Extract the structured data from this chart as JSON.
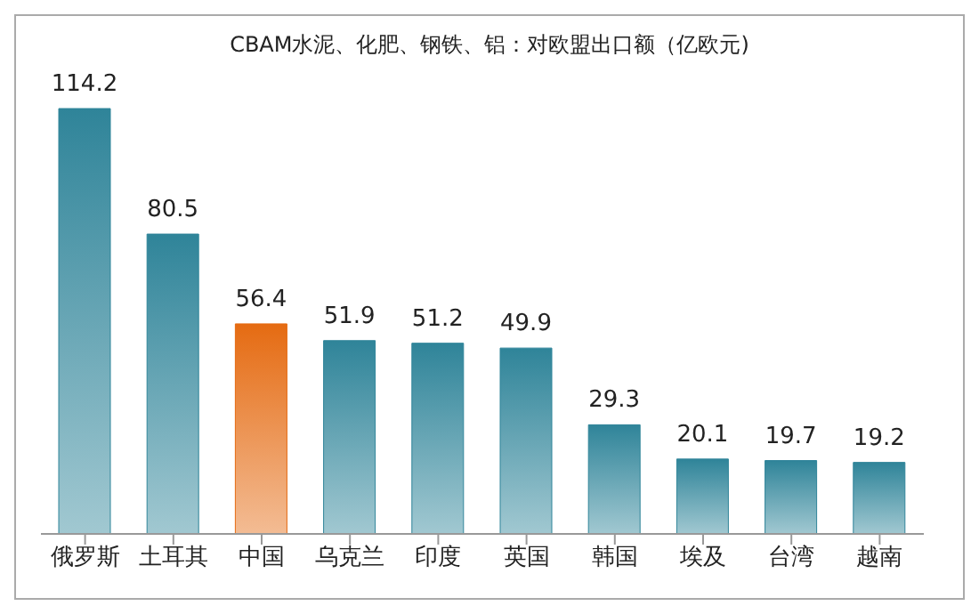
{
  "chart_data": {
    "type": "bar",
    "title": "CBAM水泥、化肥、钢铁、铝：对欧盟出口额（亿欧元)",
    "categories": [
      "俄罗斯",
      "土耳其",
      "中国",
      "乌克兰",
      "印度",
      "英国",
      "韩国",
      "埃及",
      "台湾",
      "越南"
    ],
    "values": [
      114.2,
      80.5,
      56.4,
      51.9,
      51.2,
      49.9,
      29.3,
      20.1,
      19.7,
      19.2
    ],
    "colors": [
      "#2f8499",
      "#2f8499",
      "#e56b12",
      "#2f8499",
      "#2f8499",
      "#2f8499",
      "#2f8499",
      "#2f8499",
      "#2f8499",
      "#2f8499"
    ],
    "data_labels": true,
    "grid": false
  }
}
